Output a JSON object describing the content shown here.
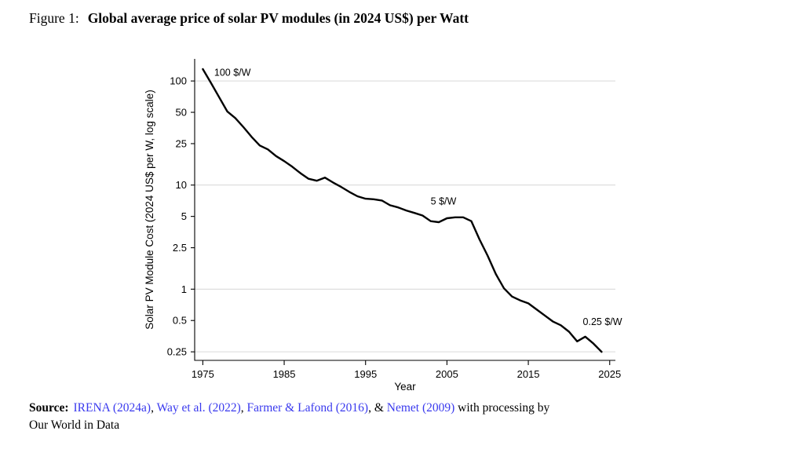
{
  "figure": {
    "label": "Figure 1:",
    "title": "Global average price of solar PV modules (in 2024 US$) per Watt"
  },
  "chart_data": {
    "type": "line",
    "title": "",
    "xlabel": "Year",
    "ylabel": "Solar PV Module Cost (2024 US$ per W, log scale)",
    "yscale": "log",
    "grid": "horizontal-only",
    "legend": "none",
    "xlim": [
      1974,
      2025.7
    ],
    "ylim": [
      0.207,
      163
    ],
    "xticks": [
      1975,
      1985,
      1995,
      2005,
      2015,
      2025
    ],
    "yticks": [
      100,
      50,
      25,
      10,
      5,
      2.5,
      1,
      0.5,
      0.25
    ],
    "ytick_labels": [
      "100",
      "50",
      "25",
      "10",
      "5",
      "2.5",
      "1",
      "0.5",
      "0.25"
    ],
    "gridlines_y": [
      100,
      10,
      1,
      0.25
    ],
    "series": [
      {
        "name": "Global average solar PV module price (2024 US$ per Watt)",
        "x": [
          1975,
          1976,
          1977,
          1978,
          1979,
          1980,
          1981,
          1982,
          1983,
          1984,
          1985,
          1986,
          1987,
          1988,
          1989,
          1990,
          1991,
          1992,
          1993,
          1994,
          1995,
          1996,
          1997,
          1998,
          1999,
          2000,
          2001,
          2002,
          2003,
          2004,
          2005,
          2006,
          2007,
          2008,
          2009,
          2010,
          2011,
          2012,
          2013,
          2014,
          2015,
          2016,
          2017,
          2018,
          2019,
          2020,
          2021,
          2022,
          2023,
          2024
        ],
        "y": [
          130,
          96,
          70,
          51,
          44,
          36,
          29,
          24,
          22,
          19,
          17,
          15,
          13,
          11.5,
          11,
          11.8,
          10.6,
          9.6,
          8.6,
          7.8,
          7.4,
          7.3,
          7.1,
          6.4,
          6.1,
          5.7,
          5.4,
          5.1,
          4.5,
          4.4,
          4.8,
          4.9,
          4.9,
          4.5,
          3.0,
          2.1,
          1.4,
          1.02,
          0.85,
          0.78,
          0.73,
          0.64,
          0.56,
          0.49,
          0.45,
          0.39,
          0.315,
          0.35,
          0.3,
          0.25
        ]
      }
    ],
    "annotations": [
      {
        "text": "100 $/W",
        "year": 1976.4,
        "value": 120
      },
      {
        "text": "5 $/W",
        "year": 2003.0,
        "value": 7.0
      },
      {
        "text": "0.25 $/W",
        "year": 2021.7,
        "value": 0.485
      }
    ]
  },
  "source": {
    "prefix": "Source:",
    "segments": [
      {
        "text": "IRENA (2024a)",
        "link": true
      },
      {
        "text": ", ",
        "link": false
      },
      {
        "text": "Way et al. (2022)",
        "link": true
      },
      {
        "text": ", ",
        "link": false
      },
      {
        "text": "Farmer & Lafond (2016)",
        "link": true
      },
      {
        "text": ", & ",
        "link": false
      },
      {
        "text": "Nemet (2009)",
        "link": true
      },
      {
        "text": " with processing by",
        "link": false
      },
      {
        "text": "Our World in Data",
        "link": false,
        "newline": true
      }
    ]
  },
  "colors": {
    "line": "#000000",
    "grid": "#d9d9d9",
    "axis": "#000000",
    "text": "#000000",
    "link": "#3a3aee",
    "background": "#ffffff"
  }
}
